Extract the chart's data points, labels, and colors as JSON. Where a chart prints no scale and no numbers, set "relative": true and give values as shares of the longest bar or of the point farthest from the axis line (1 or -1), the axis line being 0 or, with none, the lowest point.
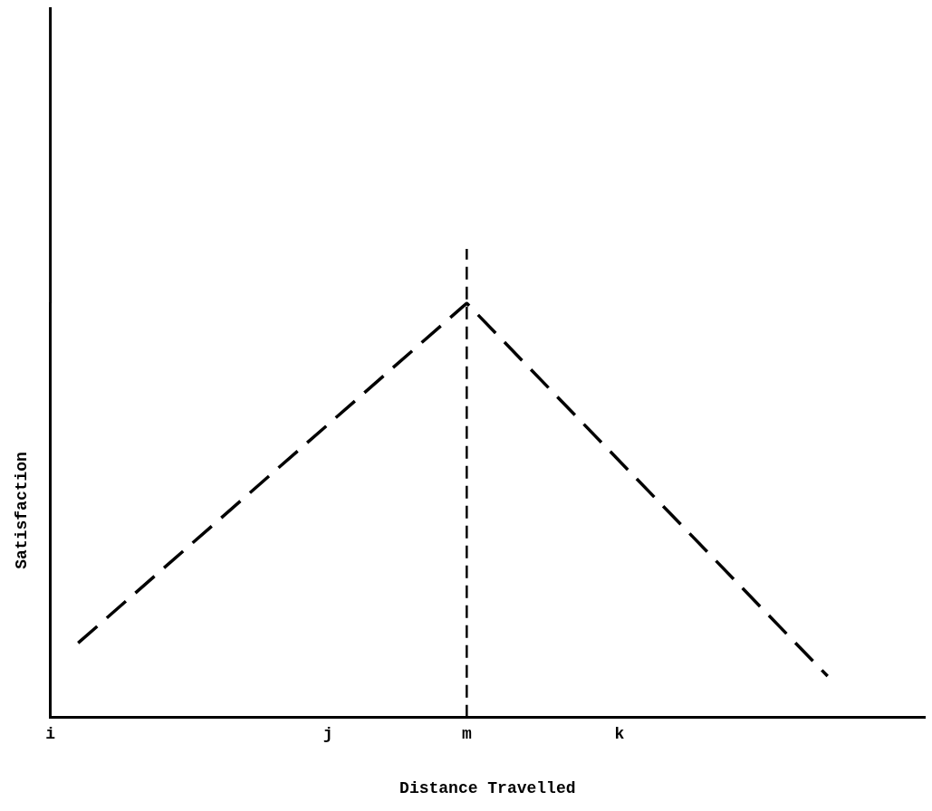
{
  "chart_data": {
    "type": "line",
    "xlabel": "Distance Travelled",
    "ylabel": "Satisfaction",
    "relative": true,
    "categories": [
      "i",
      null,
      null,
      null,
      null,
      null,
      null,
      null,
      null,
      null,
      null,
      null,
      null,
      null,
      null,
      null,
      null,
      null,
      null,
      null,
      "j",
      null,
      null,
      null,
      null,
      null,
      null,
      null,
      null,
      null,
      "m",
      null,
      null,
      null,
      null,
      null,
      null,
      null,
      null,
      null,
      null,
      "k",
      null,
      null,
      null,
      null,
      null,
      null,
      null,
      null,
      null,
      null,
      null,
      null,
      null,
      null,
      null,
      null,
      null,
      null,
      null,
      null,
      null,
      null
    ],
    "series": [
      {
        "color": "#000000",
        "values": [
          null,
          null,
          0.18,
          null,
          null,
          null,
          null,
          null,
          null,
          null,
          null,
          null,
          null,
          null,
          null,
          null,
          null,
          null,
          null,
          null,
          null,
          null,
          null,
          null,
          null,
          null,
          null,
          null,
          null,
          null,
          1,
          null,
          null,
          null,
          null,
          null,
          null,
          null,
          null,
          null,
          null,
          null,
          null,
          null,
          null,
          null,
          null,
          null,
          null,
          null,
          null,
          null,
          null,
          null,
          null,
          null,
          0.1,
          null,
          null,
          null,
          null,
          null,
          null,
          null
        ]
      }
    ],
    "ref_lines": [
      {
        "axis": "x",
        "value": "m",
        "color": "#000000",
        "line_style": "dashed"
      }
    ],
    "grid": false,
    "legend": false,
    "tick_labels": "x",
    "marker": "none",
    "line_style": "dashed"
  }
}
